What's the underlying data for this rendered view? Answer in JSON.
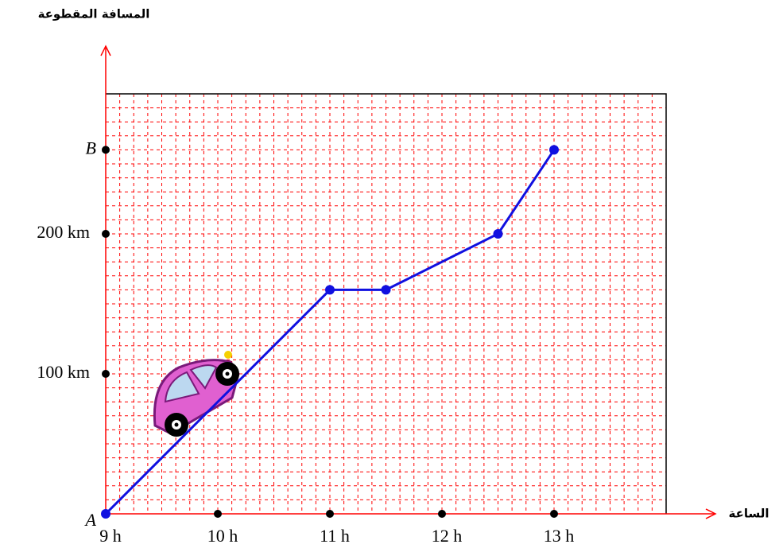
{
  "chart_data": {
    "type": "line",
    "y_label": "المسافة المقطوعة",
    "x_label": "الساعة",
    "x": [
      9,
      11,
      11.5,
      12.5,
      13
    ],
    "series": [
      {
        "color": "#1010e0",
        "values": [
          0,
          160,
          160,
          200,
          260
        ]
      }
    ],
    "xlim": [
      9,
      14
    ],
    "ylim": [
      0,
      300
    ],
    "xticks": [
      {
        "value": 9,
        "label": "9 h"
      },
      {
        "value": 10,
        "label": "10 h"
      },
      {
        "value": 11,
        "label": "11 h"
      },
      {
        "value": 12,
        "label": "12 h"
      },
      {
        "value": 13,
        "label": "13 h"
      }
    ],
    "yticks": [
      {
        "value": 0,
        "label": "A"
      },
      {
        "value": 100,
        "label": "100 km"
      },
      {
        "value": 200,
        "label": "200 km"
      },
      {
        "value": 260,
        "label": "B"
      }
    ],
    "grid": true,
    "grid_color": "#ff0000",
    "axis_color": "#ff0000"
  }
}
